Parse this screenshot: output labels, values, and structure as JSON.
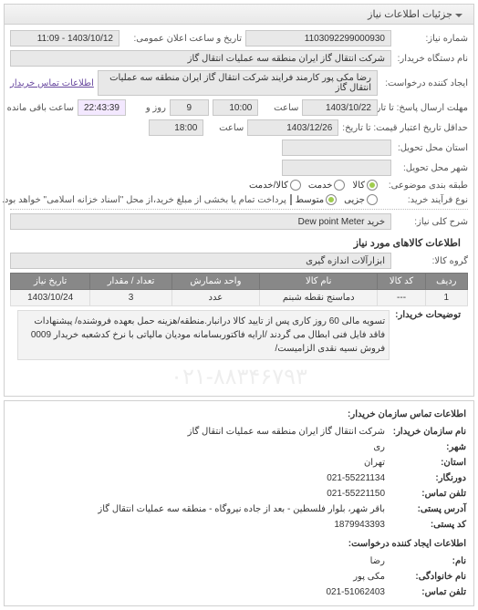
{
  "panel": {
    "title": "جزئیات اطلاعات نیاز"
  },
  "header": {
    "need_no_label": "شماره نیاز:",
    "need_no": "1103092299000930",
    "announce_label": "تاریخ و ساعت اعلان عمومی:",
    "announce": "1403/10/12 - 11:09",
    "org_label": "نام دستگاه خریدار:",
    "org": "شرکت انتقال گاز ایران منطقه سه عملیات انتقال گاز",
    "requester_label": "ایجاد کننده درخواست:",
    "requester": "رضا مکی پور کارمند فرایند شرکت انتقال گاز ایران منطقه سه عملیات انتقال گاز",
    "contact_link": "اطلاعات تماس خریدار",
    "deadline_label": "مهلت ارسال پاسخ: تا تاریخ:",
    "deadline_date": "1403/10/22",
    "time_label": "ساعت",
    "deadline_time": "10:00",
    "day_label": "روز و",
    "days_left": "9",
    "remain_label": "ساعت باقی مانده",
    "remain_time": "22:43:39",
    "validity_label": "حداقل تاریخ اعتبار قیمت: تا تاریخ:",
    "validity_date": "1403/12/26",
    "validity_time": "18:00",
    "delivery_state_label": "استان محل تحویل:",
    "delivery_city_label": "شهر محل تحویل:",
    "subject_cat_label": "طبقه بندی موضوعی:",
    "radio_goods": "کالا",
    "radio_service": "خدمت",
    "radio_both": "کالا/خدمت",
    "process_label": "نوع فرآیند خرید:",
    "radio_medium": "متوسط",
    "radio_small": "جزیی",
    "note": "پرداخت تمام یا بخشی از مبلغ خرید،از محل \"اسناد خزانه اسلامی\" خواهد بود.",
    "title_label": "شرح کلی نیاز:",
    "title": "خرید Dew point Meter"
  },
  "goods": {
    "section": "اطلاعات کالاهای مورد نیاز",
    "group_label": "گروه کالا:",
    "group": "ابزارآلات اندازه گیری",
    "columns": [
      "ردیف",
      "کد کالا",
      "نام کالا",
      "واحد شمارش",
      "تعداد / مقدار",
      "تاریخ نیاز"
    ],
    "rows": [
      [
        "1",
        "---",
        "دماسنج نقطه شبنم",
        "عدد",
        "3",
        "1403/10/24"
      ]
    ]
  },
  "description": {
    "label": "توضیحات خریدار:",
    "text": "تسویه مالی 60 روز کاری پس از تایید کالا درانبار.منطقه/هزینه حمل بعهده فروشنده/ پیشنهادات فاقد فایل فنی ابطال می گردند /ارایه فاکتوربسامانه مودیان مالیاتی با نرخ کدشعبه خریدار 0009 فروش نسیه نقدی الزامیست/"
  },
  "contact": {
    "title": "اطلاعات تماس سازمان خریدار:",
    "org_label": "نام سازمان خریدار:",
    "org": "شرکت انتقال گاز ایران منطقه سه عملیات انتقال گاز",
    "city_label": "شهر:",
    "city": "ری",
    "province_label": "استان:",
    "province": "تهران",
    "fax_label": "دورنگار:",
    "fax": "021-55221134",
    "phone_label": "تلفن تماس:",
    "phone": "021-55221150",
    "address_label": "آدرس پستی:",
    "address": "باقر شهر، بلوار فلسطین - بعد از جاده نیروگاه - منطقه سه عملیات انتقال گاز",
    "postal_label": "کد پستی:",
    "postal": "1879943393",
    "creator_title": "اطلاعات ایجاد کننده درخواست:",
    "name_label": "نام:",
    "name": "رضا",
    "lastname_label": "نام خانوادگی:",
    "lastname": "مکی پور",
    "creator_phone_label": "تلفن تماس:",
    "creator_phone": "021-51062403"
  }
}
